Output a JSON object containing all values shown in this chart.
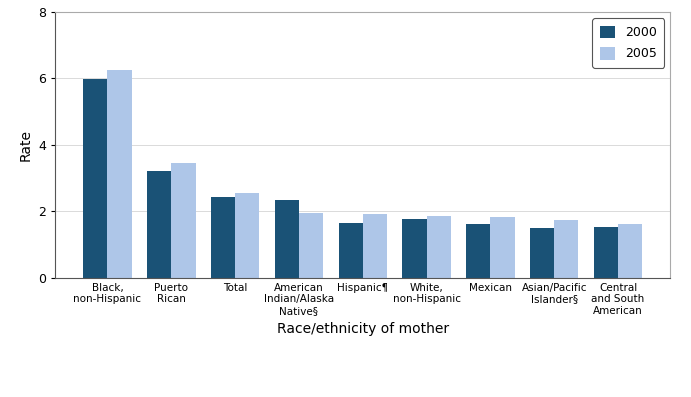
{
  "categories": [
    "Black,\nnon-Hispanic",
    "Puerto\nRican",
    "Total",
    "American\nIndian/Alaska\nNative§",
    "Hispanic¶",
    "White,\nnon-Hispanic",
    "Mexican",
    "Asian/Pacific\nIslander§",
    "Central\nand South\nAmerican"
  ],
  "values_2000": [
    5.99,
    3.22,
    2.42,
    2.33,
    1.64,
    1.77,
    1.63,
    1.5,
    1.54
  ],
  "values_2005": [
    6.25,
    3.47,
    2.54,
    1.94,
    1.92,
    1.86,
    1.82,
    1.73,
    1.62
  ],
  "color_2000": "#1A5276",
  "color_2005": "#AEC6E8",
  "ylabel": "Rate",
  "xlabel": "Race/ethnicity of mother",
  "ylim": [
    0,
    8
  ],
  "yticks": [
    0,
    2,
    4,
    6,
    8
  ],
  "legend_labels": [
    "2000",
    "2005"
  ],
  "bar_width": 0.38,
  "background_color": "#ffffff"
}
